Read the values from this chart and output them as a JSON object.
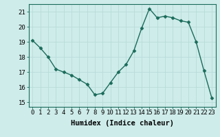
{
  "x": [
    0,
    1,
    2,
    3,
    4,
    5,
    6,
    7,
    8,
    9,
    10,
    11,
    12,
    13,
    14,
    15,
    16,
    17,
    18,
    19,
    20,
    21,
    22,
    23
  ],
  "y": [
    19.1,
    18.6,
    18.0,
    17.2,
    17.0,
    16.8,
    16.5,
    16.2,
    15.5,
    15.6,
    16.3,
    17.0,
    17.5,
    18.4,
    19.9,
    21.2,
    20.6,
    20.7,
    20.6,
    20.4,
    20.3,
    19.0,
    17.1,
    15.3
  ],
  "line_color": "#1a6b5a",
  "marker": "D",
  "markersize": 2.5,
  "linewidth": 1.0,
  "bg_color": "#ceecea",
  "grid_color": "#b8dcd9",
  "xlabel": "Humidex (Indice chaleur)",
  "xlim": [
    -0.5,
    23.5
  ],
  "ylim": [
    14.7,
    21.5
  ],
  "yticks": [
    15,
    16,
    17,
    18,
    19,
    20,
    21
  ],
  "xticks": [
    0,
    1,
    2,
    3,
    4,
    5,
    6,
    7,
    8,
    9,
    10,
    11,
    12,
    13,
    14,
    15,
    16,
    17,
    18,
    19,
    20,
    21,
    22,
    23
  ],
  "xlabel_fontsize": 7.5,
  "tick_fontsize": 6.5
}
